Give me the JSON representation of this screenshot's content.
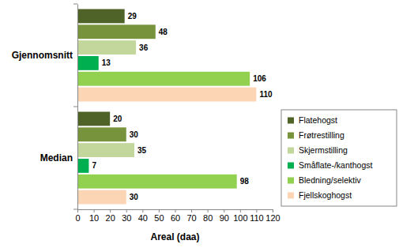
{
  "chart_data": {
    "type": "bar",
    "orientation": "horizontal",
    "categories": [
      "Gjennomsnitt",
      "Median"
    ],
    "series": [
      {
        "name": "Flatehogst",
        "color": "#4f6228",
        "values": [
          29,
          20
        ]
      },
      {
        "name": "Frøtrestilling",
        "color": "#77933c",
        "values": [
          48,
          30
        ]
      },
      {
        "name": "Skjermstilling",
        "color": "#c3d69b",
        "values": [
          36,
          35
        ]
      },
      {
        "name": "Småflate-/kanthogst",
        "color": "#00b050",
        "values": [
          13,
          7
        ]
      },
      {
        "name": "Bledning/selektiv",
        "color": "#92d050",
        "values": [
          106,
          98
        ]
      },
      {
        "name": "Fjellskoghogst",
        "color": "#fcd5b5",
        "values": [
          110,
          30
        ]
      }
    ],
    "xlabel": "Areal (daa)",
    "xlim": [
      0,
      120
    ],
    "xticks": [
      0,
      10,
      20,
      30,
      40,
      50,
      60,
      70,
      80,
      90,
      100,
      110,
      120
    ],
    "data_labels": true,
    "legend": "right"
  }
}
